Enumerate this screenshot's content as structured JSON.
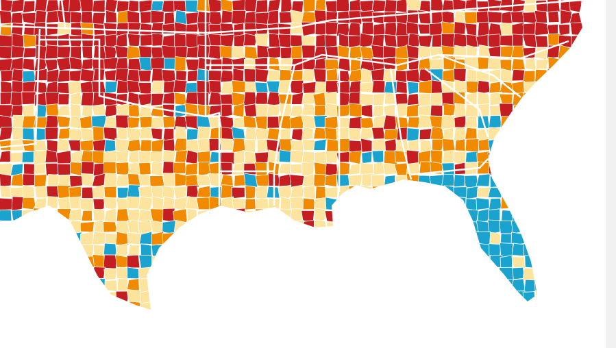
{
  "map": {
    "colors": [
      "#c41e22",
      "#f28a00",
      "#fde49e",
      "#1aa3cf"
    ]
  }
}
